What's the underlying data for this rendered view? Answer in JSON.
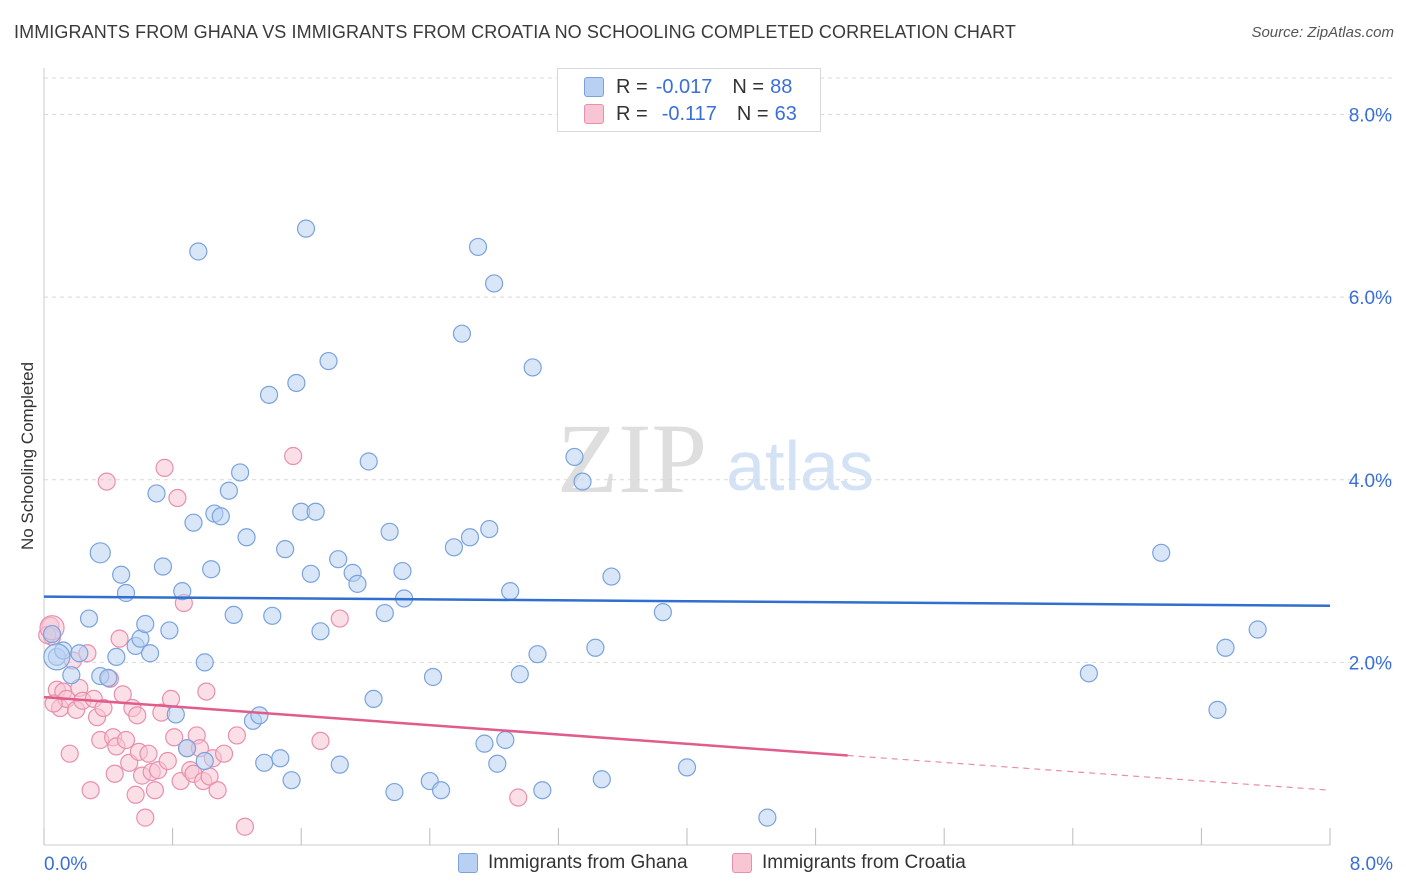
{
  "title": "IMMIGRANTS FROM GHANA VS IMMIGRANTS FROM CROATIA NO SCHOOLING COMPLETED CORRELATION CHART",
  "source": "Source: ZipAtlas.com",
  "watermark": {
    "zip": "ZIP",
    "atlas": "atlas"
  },
  "legend": {
    "ghana": {
      "r_label": "R = ",
      "r_value": "-0.017",
      "n_label": "N = ",
      "n_value": "88"
    },
    "croatia": {
      "r_label": "R = ",
      "r_value": "-0.117",
      "n_label": "N = ",
      "n_value": "63"
    }
  },
  "colors": {
    "ghana_fill": "#b8d1f3",
    "ghana_stroke": "#7aa3dd",
    "ghana_line": "#2f6fcf",
    "croatia_fill": "#f7c5d4",
    "croatia_stroke": "#e98fae",
    "croatia_line": "#e05c8a",
    "tick_label": "#3a6fd8",
    "grid": "#d9d9d9"
  },
  "chart_data": {
    "type": "scatter",
    "title": "IMMIGRANTS FROM GHANA VS IMMIGRANTS FROM CROATIA NO SCHOOLING COMPLETED CORRELATION CHART",
    "xlabel": "",
    "ylabel": "No Schooling Completed",
    "xlim": [
      0,
      8
    ],
    "ylim": [
      0,
      8.4
    ],
    "x_tick_labels": [
      "0.0%",
      "8.0%"
    ],
    "y_ticks": [
      2,
      4,
      6,
      8
    ],
    "y_tick_labels": [
      "2.0%",
      "4.0%",
      "6.0%",
      "8.0%"
    ],
    "grid": true,
    "legend_position": "bottom",
    "series": [
      {
        "name": "Immigrants from Ghana",
        "r": -0.017,
        "n": 88,
        "trend": {
          "x": [
            0,
            8
          ],
          "y": [
            2.72,
            2.62
          ]
        },
        "points": [
          [
            0.08,
            2.06
          ],
          [
            0.12,
            2.13
          ],
          [
            0.17,
            1.86
          ],
          [
            0.22,
            2.1
          ],
          [
            0.28,
            2.48
          ],
          [
            0.35,
            1.85
          ],
          [
            0.4,
            1.83
          ],
          [
            0.45,
            2.06
          ],
          [
            0.48,
            2.96
          ],
          [
            0.51,
            2.76
          ],
          [
            0.57,
            2.18
          ],
          [
            0.6,
            2.26
          ],
          [
            0.63,
            2.42
          ],
          [
            0.66,
            2.1
          ],
          [
            0.7,
            3.85
          ],
          [
            0.74,
            3.05
          ],
          [
            0.78,
            2.35
          ],
          [
            0.82,
            1.43
          ],
          [
            0.86,
            2.78
          ],
          [
            0.89,
            1.06
          ],
          [
            0.93,
            3.53
          ],
          [
            0.96,
            6.5
          ],
          [
            1.0,
            2.0
          ],
          [
            1.04,
            3.02
          ],
          [
            1.06,
            3.63
          ],
          [
            1.1,
            3.6
          ],
          [
            1.15,
            3.88
          ],
          [
            1.18,
            2.52
          ],
          [
            1.22,
            4.08
          ],
          [
            1.26,
            3.37
          ],
          [
            1.3,
            1.36
          ],
          [
            1.34,
            1.42
          ],
          [
            1.37,
            0.9
          ],
          [
            1.4,
            4.93
          ],
          [
            1.42,
            2.51
          ],
          [
            1.47,
            0.95
          ],
          [
            1.5,
            3.24
          ],
          [
            1.54,
            0.71
          ],
          [
            1.57,
            5.06
          ],
          [
            1.6,
            3.65
          ],
          [
            1.63,
            6.75
          ],
          [
            1.66,
            2.97
          ],
          [
            1.69,
            3.65
          ],
          [
            1.72,
            2.34
          ],
          [
            1.77,
            5.3
          ],
          [
            1.83,
            3.13
          ],
          [
            1.84,
            0.88
          ],
          [
            1.92,
            2.98
          ],
          [
            1.95,
            2.86
          ],
          [
            2.02,
            4.2
          ],
          [
            2.05,
            1.6
          ],
          [
            2.12,
            2.54
          ],
          [
            2.15,
            3.43
          ],
          [
            2.18,
            0.58
          ],
          [
            2.23,
            3.0
          ],
          [
            2.24,
            2.7
          ],
          [
            2.4,
            0.7
          ],
          [
            2.42,
            1.84
          ],
          [
            2.47,
            0.6
          ],
          [
            2.55,
            3.26
          ],
          [
            2.6,
            5.6
          ],
          [
            2.65,
            3.37
          ],
          [
            2.7,
            6.55
          ],
          [
            2.74,
            1.11
          ],
          [
            2.77,
            3.46
          ],
          [
            2.8,
            6.15
          ],
          [
            2.82,
            0.89
          ],
          [
            2.87,
            1.15
          ],
          [
            2.9,
            2.78
          ],
          [
            2.96,
            1.87
          ],
          [
            3.04,
            5.23
          ],
          [
            3.07,
            2.09
          ],
          [
            3.1,
            0.6
          ],
          [
            3.3,
            4.25
          ],
          [
            3.35,
            3.98
          ],
          [
            3.43,
            2.16
          ],
          [
            3.47,
            0.72
          ],
          [
            3.53,
            2.94
          ],
          [
            4.0,
            0.85
          ],
          [
            4.5,
            0.3
          ],
          [
            6.5,
            1.88
          ],
          [
            6.95,
            3.2
          ],
          [
            7.3,
            1.48
          ],
          [
            7.35,
            2.16
          ],
          [
            7.55,
            2.36
          ],
          [
            0.05,
            2.31
          ],
          [
            1.0,
            0.92
          ],
          [
            3.85,
            2.55
          ]
        ]
      },
      {
        "name": "Immigrants from Croatia",
        "r": -0.117,
        "n": 63,
        "trend": {
          "x": [
            0,
            5.0
          ],
          "y": [
            1.62,
            0.98
          ]
        },
        "trend_dashed": {
          "x": [
            5.0,
            8
          ],
          "y": [
            0.98,
            0.6
          ]
        },
        "points": [
          [
            0.04,
            2.4
          ],
          [
            0.05,
            2.28
          ],
          [
            0.08,
            1.7
          ],
          [
            0.1,
            1.5
          ],
          [
            0.12,
            1.68
          ],
          [
            0.14,
            1.6
          ],
          [
            0.16,
            1.0
          ],
          [
            0.18,
            2.02
          ],
          [
            0.2,
            1.48
          ],
          [
            0.22,
            1.72
          ],
          [
            0.24,
            1.58
          ],
          [
            0.27,
            2.1
          ],
          [
            0.29,
            0.6
          ],
          [
            0.31,
            1.6
          ],
          [
            0.33,
            1.4
          ],
          [
            0.35,
            1.15
          ],
          [
            0.37,
            1.5
          ],
          [
            0.39,
            3.98
          ],
          [
            0.41,
            1.82
          ],
          [
            0.43,
            1.18
          ],
          [
            0.45,
            1.08
          ],
          [
            0.47,
            2.26
          ],
          [
            0.49,
            1.65
          ],
          [
            0.51,
            1.15
          ],
          [
            0.53,
            0.9
          ],
          [
            0.55,
            1.5
          ],
          [
            0.57,
            0.55
          ],
          [
            0.59,
            1.02
          ],
          [
            0.61,
            0.76
          ],
          [
            0.63,
            0.3
          ],
          [
            0.65,
            1.0
          ],
          [
            0.67,
            0.8
          ],
          [
            0.69,
            0.6
          ],
          [
            0.71,
            0.82
          ],
          [
            0.73,
            1.45
          ],
          [
            0.75,
            4.13
          ],
          [
            0.77,
            0.92
          ],
          [
            0.79,
            1.6
          ],
          [
            0.81,
            1.18
          ],
          [
            0.83,
            3.8
          ],
          [
            0.85,
            0.7
          ],
          [
            0.87,
            2.65
          ],
          [
            0.89,
            1.06
          ],
          [
            0.91,
            0.82
          ],
          [
            0.93,
            0.78
          ],
          [
            0.95,
            1.2
          ],
          [
            0.97,
            1.06
          ],
          [
            0.99,
            0.7
          ],
          [
            1.01,
            1.68
          ],
          [
            1.03,
            0.75
          ],
          [
            1.05,
            0.95
          ],
          [
            1.08,
            0.6
          ],
          [
            1.12,
            1.0
          ],
          [
            1.2,
            1.2
          ],
          [
            1.25,
            0.2
          ],
          [
            1.55,
            4.26
          ],
          [
            1.72,
            1.14
          ],
          [
            1.84,
            2.48
          ],
          [
            2.95,
            0.52
          ],
          [
            0.02,
            2.3
          ],
          [
            0.06,
            1.55
          ],
          [
            0.44,
            0.78
          ],
          [
            0.58,
            1.42
          ]
        ]
      }
    ]
  }
}
